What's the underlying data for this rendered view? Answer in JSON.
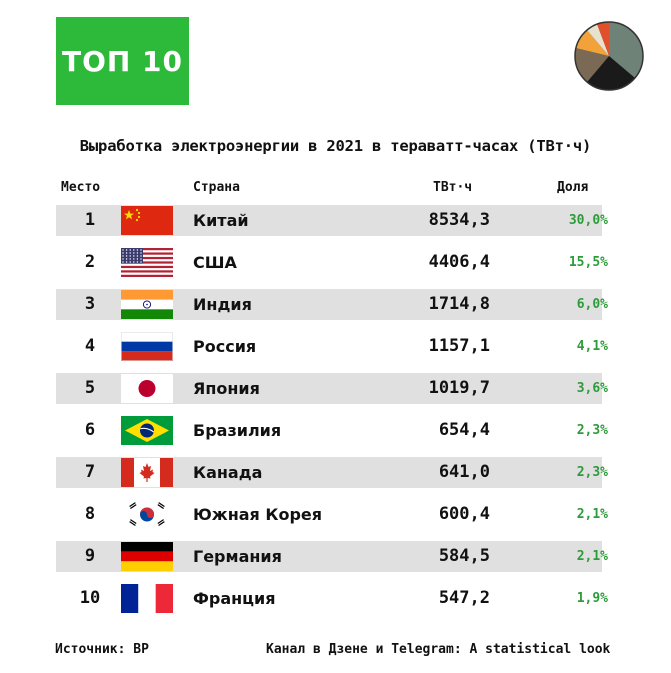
{
  "badge": "ТОП 10",
  "title": "Выработка электроэнергии в 2021 в тераватт-часах (ТВт·ч)",
  "columns": {
    "rank": "Место",
    "country": "Страна",
    "value": "ТВт·ч",
    "share": "Доля"
  },
  "colors": {
    "badge_bg": "#2db93a",
    "share_text": "#2e9b3a",
    "row_shade": "#e0e0e0"
  },
  "chart_data": {
    "type": "table",
    "title": "Выработка электроэнергии в 2021 в тераватт-часах (ТВт·ч)",
    "rows": [
      {
        "rank": "1",
        "country": "Китай",
        "flag": "china-flag",
        "value": "8534,3",
        "share": "30,0%"
      },
      {
        "rank": "2",
        "country": "США",
        "flag": "usa-flag",
        "value": "4406,4",
        "share": "15,5%"
      },
      {
        "rank": "3",
        "country": "Индия",
        "flag": "india-flag",
        "value": "1714,8",
        "share": "6,0%"
      },
      {
        "rank": "4",
        "country": "Россия",
        "flag": "russia-flag",
        "value": "1157,1",
        "share": "4,1%"
      },
      {
        "rank": "5",
        "country": "Япония",
        "flag": "japan-flag",
        "value": "1019,7",
        "share": "3,6%"
      },
      {
        "rank": "6",
        "country": "Бразилия",
        "flag": "brazil-flag",
        "value": "654,4",
        "share": "2,3%"
      },
      {
        "rank": "7",
        "country": "Канада",
        "flag": "canada-flag",
        "value": "641,0",
        "share": "2,3%"
      },
      {
        "rank": "8",
        "country": "Южная Корея",
        "flag": "south-korea-flag",
        "value": "600,4",
        "share": "2,1%"
      },
      {
        "rank": "9",
        "country": "Германия",
        "flag": "germany-flag",
        "value": "584,5",
        "share": "2,1%"
      },
      {
        "rank": "10",
        "country": "Франция",
        "flag": "france-flag",
        "value": "547,2",
        "share": "1,9%"
      }
    ]
  },
  "footer": {
    "source": "Источник: BP",
    "channel": "Канал в Дзене и Telegram: A statistical look"
  }
}
